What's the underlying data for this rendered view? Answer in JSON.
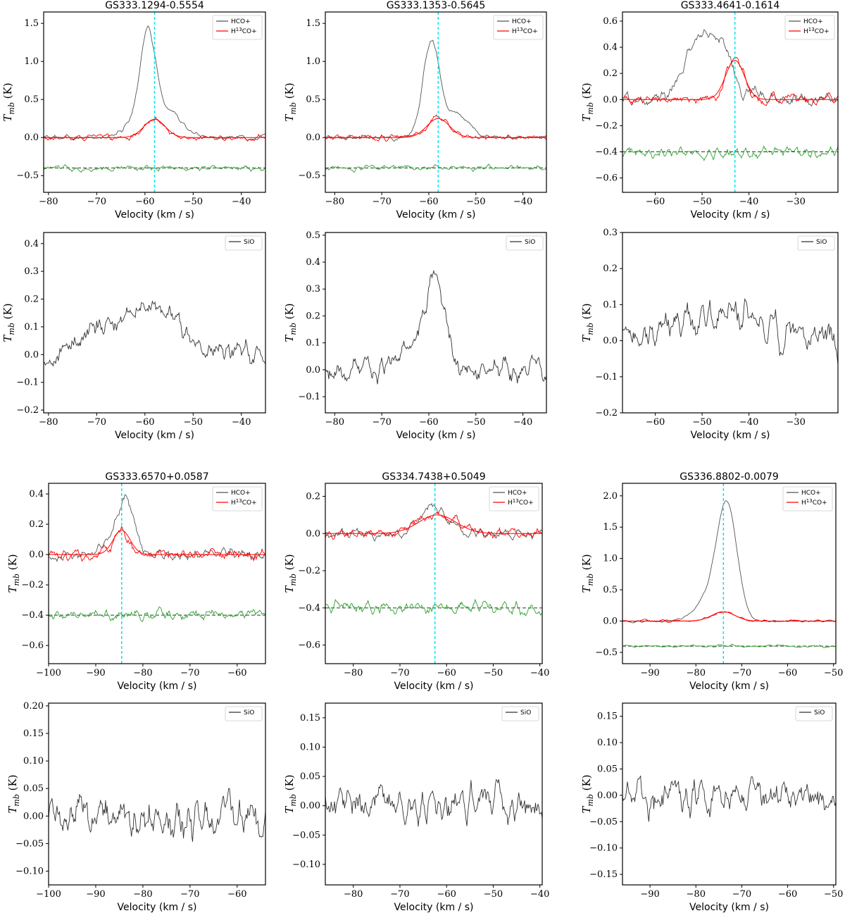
{
  "chart_data": [
    {
      "type": "line",
      "title": "GS333.1294-0.5554",
      "xlabel": "Velocity (km / s)",
      "ylabel": "T_mb (K)",
      "xlim": [
        -81,
        -35
      ],
      "ylim": [
        -0.72,
        1.65
      ],
      "xticks": [
        -80,
        -70,
        -60,
        -50,
        -40
      ],
      "yticks": [
        -0.5,
        0,
        0.5,
        1.0,
        1.5
      ],
      "ytick_labels": [
        "−0.5",
        "0.0",
        "0.5",
        "1.0",
        "1.5"
      ],
      "vline": -58,
      "baseline": -0.4,
      "legend": [
        "HCO+",
        "H13CO+"
      ],
      "noise": 0.05,
      "series": [
        {
          "name": "HCO+",
          "color": "#555555",
          "peaks": [
            {
              "v": -59.4,
              "a": 1.35,
              "w": 1.6
            },
            {
              "v": -55,
              "a": 0.35,
              "w": 2.5
            },
            {
              "v": -63,
              "a": 0.15,
              "w": 2
            }
          ]
        },
        {
          "name": "H13CO+",
          "color": "#ff0000",
          "peaks": [
            {
              "v": -58,
              "a": 0.24,
              "w": 2.2
            }
          ],
          "fit": true
        },
        {
          "name": "residual",
          "color": "#2ca02c",
          "offset": -0.4
        }
      ]
    },
    {
      "type": "line",
      "title": "",
      "xlabel": "Velocity (km / s)",
      "ylabel": "T_mb (K)",
      "xlim": [
        -81,
        -35
      ],
      "ylim": [
        -0.21,
        0.44
      ],
      "xticks": [
        -80,
        -70,
        -60,
        -50,
        -40
      ],
      "yticks": [
        -0.2,
        -0.1,
        0,
        0.1,
        0.2,
        0.3,
        0.4
      ],
      "ytick_labels": [
        "−0.2",
        "−0.1",
        "0.0",
        "0.1",
        "0.2",
        "0.3",
        "0.4"
      ],
      "legend": [
        "SiO"
      ],
      "noise": 0.06,
      "series": [
        {
          "name": "SiO",
          "color": "#333333",
          "peaks": [
            {
              "v": -60,
              "a": 0.18,
              "w": 6
            },
            {
              "v": -72,
              "a": 0.05,
              "w": 3
            }
          ]
        }
      ]
    },
    {
      "type": "line",
      "title": "GS333.1353-0.5645",
      "xlabel": "Velocity (km / s)",
      "ylabel": "T_mb (K)",
      "xlim": [
        -82,
        -35
      ],
      "ylim": [
        -0.72,
        1.65
      ],
      "xticks": [
        -80,
        -70,
        -60,
        -50,
        -40
      ],
      "yticks": [
        -0.5,
        0,
        0.5,
        1.0,
        1.5
      ],
      "ytick_labels": [
        "−0.5",
        "0.0",
        "0.5",
        "1.0",
        "1.5"
      ],
      "vline": -58,
      "baseline": -0.4,
      "legend": [
        "HCO+",
        "H13CO+"
      ],
      "noise": 0.05,
      "series": [
        {
          "name": "HCO+",
          "color": "#555555",
          "peaks": [
            {
              "v": -59.5,
              "a": 1.25,
              "w": 1.8
            },
            {
              "v": -54,
              "a": 0.3,
              "w": 2.5
            }
          ]
        },
        {
          "name": "H13CO+",
          "color": "#ff0000",
          "peaks": [
            {
              "v": -58,
              "a": 0.25,
              "w": 2.4
            }
          ],
          "fit": true
        },
        {
          "name": "residual",
          "color": "#2ca02c",
          "offset": -0.4
        }
      ]
    },
    {
      "type": "line",
      "title": "",
      "xlabel": "Velocity (km / s)",
      "ylabel": "T_mb (K)",
      "xlim": [
        -82,
        -35
      ],
      "ylim": [
        -0.16,
        0.51
      ],
      "xticks": [
        -80,
        -70,
        -60,
        -50,
        -40
      ],
      "yticks": [
        -0.1,
        0,
        0.1,
        0.2,
        0.3,
        0.4,
        0.5
      ],
      "ytick_labels": [
        "−0.1",
        "0.0",
        "0.1",
        "0.2",
        "0.3",
        "0.4",
        "0.5"
      ],
      "legend": [
        "SiO"
      ],
      "noise": 0.06,
      "series": [
        {
          "name": "SiO",
          "color": "#333333",
          "peaks": [
            {
              "v": -58.5,
              "a": 0.3,
              "w": 2
            },
            {
              "v": -62,
              "a": 0.08,
              "w": 4
            }
          ]
        }
      ]
    },
    {
      "type": "line",
      "title": "GS333.4641-0.1614",
      "xlabel": "Velocity (km / s)",
      "ylabel": "T_mb (K)",
      "xlim": [
        -67,
        -21
      ],
      "ylim": [
        -0.71,
        0.67
      ],
      "xticks": [
        -60,
        -50,
        -40,
        -30
      ],
      "yticks": [
        -0.6,
        -0.4,
        -0.2,
        0,
        0.2,
        0.4,
        0.6
      ],
      "ytick_labels": [
        "−0.6",
        "−0.4",
        "−0.2",
        "0.0",
        "0.2",
        "0.4",
        "0.6"
      ],
      "vline": -43,
      "baseline": -0.4,
      "legend": [
        "HCO+",
        "H13CO+"
      ],
      "noise": 0.06,
      "series": [
        {
          "name": "HCO+",
          "color": "#555555",
          "peaks": [
            {
              "v": -47,
              "a": 0.45,
              "w": 4
            },
            {
              "v": -52,
              "a": 0.2,
              "w": 3
            },
            {
              "v": -42,
              "a": -0.15,
              "w": 1
            }
          ]
        },
        {
          "name": "H13CO+",
          "color": "#ff0000",
          "peaks": [
            {
              "v": -43,
              "a": 0.3,
              "w": 2
            }
          ],
          "fit": true
        },
        {
          "name": "residual",
          "color": "#2ca02c",
          "offset": -0.4
        }
      ]
    },
    {
      "type": "line",
      "title": "",
      "xlabel": "Velocity (km / s)",
      "ylabel": "T_mb (K)",
      "xlim": [
        -67,
        -21
      ],
      "ylim": [
        -0.2,
        0.3
      ],
      "xticks": [
        -60,
        -50,
        -40,
        -30
      ],
      "yticks": [
        -0.2,
        -0.1,
        0,
        0.1,
        0.2,
        0.3
      ],
      "ytick_labels": [
        "−0.2",
        "−0.1",
        "0.0",
        "0.1",
        "0.2",
        "0.3"
      ],
      "legend": [
        "SiO"
      ],
      "noise": 0.07,
      "series": [
        {
          "name": "SiO",
          "color": "#333333",
          "peaks": [
            {
              "v": -45,
              "a": 0.08,
              "w": 8
            }
          ]
        }
      ]
    },
    {
      "type": "line",
      "title": "GS333.6570+0.0587",
      "xlabel": "Velocity (km / s)",
      "ylabel": "T_mb (K)",
      "xlim": [
        -100,
        -54
      ],
      "ylim": [
        -0.72,
        0.47
      ],
      "xticks": [
        -100,
        -90,
        -80,
        -70,
        -60
      ],
      "yticks": [
        -0.6,
        -0.4,
        -0.2,
        0,
        0.2,
        0.4
      ],
      "ytick_labels": [
        "−0.6",
        "−0.4",
        "−0.2",
        "0.0",
        "0.2",
        "0.4"
      ],
      "vline": -84.5,
      "baseline": -0.4,
      "legend": [
        "HCO+",
        "H13CO+"
      ],
      "noise": 0.05,
      "series": [
        {
          "name": "HCO+",
          "color": "#555555",
          "peaks": [
            {
              "v": -83.5,
              "a": 0.33,
              "w": 1.6
            },
            {
              "v": -86,
              "a": 0.12,
              "w": 2
            }
          ]
        },
        {
          "name": "H13CO+",
          "color": "#ff0000",
          "peaks": [
            {
              "v": -84.5,
              "a": 0.16,
              "w": 1.8
            }
          ],
          "fit": true
        },
        {
          "name": "residual",
          "color": "#2ca02c",
          "offset": -0.4
        }
      ]
    },
    {
      "type": "line",
      "title": "",
      "xlabel": "Velocity (km / s)",
      "ylabel": "T_mb (K)",
      "xlim": [
        -100,
        -54
      ],
      "ylim": [
        -0.125,
        0.205
      ],
      "xticks": [
        -100,
        -90,
        -80,
        -70,
        -60
      ],
      "yticks": [
        -0.1,
        -0.05,
        0,
        0.05,
        0.1,
        0.15,
        0.2
      ],
      "ytick_labels": [
        "−0.10",
        "−0.05",
        "0.00",
        "0.05",
        "0.10",
        "0.15",
        "0.20"
      ],
      "legend": [
        "SiO"
      ],
      "noise": 0.05,
      "series": [
        {
          "name": "SiO",
          "color": "#333333",
          "peaks": []
        }
      ]
    },
    {
      "type": "line",
      "title": "GS334.7438+0.5049",
      "xlabel": "Velocity (km / s)",
      "ylabel": "T_mb (K)",
      "xlim": [
        -86,
        -39.5
      ],
      "ylim": [
        -0.7,
        0.27
      ],
      "xticks": [
        -80,
        -70,
        -60,
        -50,
        -40
      ],
      "yticks": [
        -0.6,
        -0.4,
        -0.2,
        0,
        0.2
      ],
      "ytick_labels": [
        "−0.6",
        "−0.4",
        "−0.2",
        "0.0",
        "0.2"
      ],
      "vline": -62.5,
      "baseline": -0.4,
      "legend": [
        "HCO+",
        "H13CO+"
      ],
      "noise": 0.04,
      "series": [
        {
          "name": "HCO+",
          "color": "#555555",
          "peaks": [
            {
              "v": -63,
              "a": 0.15,
              "w": 2.5
            }
          ]
        },
        {
          "name": "H13CO+",
          "color": "#ff0000",
          "peaks": [
            {
              "v": -62,
              "a": 0.1,
              "w": 4
            }
          ],
          "fit": true
        },
        {
          "name": "residual",
          "color": "#2ca02c",
          "offset": -0.4
        }
      ]
    },
    {
      "type": "line",
      "title": "",
      "xlabel": "Velocity (km / s)",
      "ylabel": "T_mb (K)",
      "xlim": [
        -86,
        -39.5
      ],
      "ylim": [
        -0.135,
        0.175
      ],
      "xticks": [
        -80,
        -70,
        -60,
        -50,
        -40
      ],
      "yticks": [
        -0.1,
        -0.05,
        0,
        0.05,
        0.1,
        0.15
      ],
      "ytick_labels": [
        "−0.10",
        "−0.05",
        "0.00",
        "0.05",
        "0.10",
        "0.15"
      ],
      "legend": [
        "SiO"
      ],
      "noise": 0.045,
      "series": [
        {
          "name": "SiO",
          "color": "#333333",
          "peaks": []
        }
      ]
    },
    {
      "type": "line",
      "title": "GS336.8802-0.0079",
      "xlabel": "Velocity (km / s)",
      "ylabel": "T_mb (K)",
      "xlim": [
        -96,
        -49.5
      ],
      "ylim": [
        -0.68,
        2.2
      ],
      "xticks": [
        -90,
        -80,
        -70,
        -60,
        -50
      ],
      "yticks": [
        -0.5,
        0,
        0.5,
        1.0,
        1.5,
        2.0
      ],
      "ytick_labels": [
        "−0.5",
        "0.0",
        "0.5",
        "1.0",
        "1.5",
        "2.0"
      ],
      "vline": -74,
      "baseline": -0.4,
      "legend": [
        "HCO+",
        "H13CO+"
      ],
      "noise": 0.03,
      "series": [
        {
          "name": "HCO+",
          "color": "#555555",
          "peaks": [
            {
              "v": -73.2,
              "a": 1.75,
              "w": 2.2
            },
            {
              "v": -77,
              "a": 0.35,
              "w": 3
            }
          ]
        },
        {
          "name": "H13CO+",
          "color": "#ff0000",
          "peaks": [
            {
              "v": -74,
              "a": 0.15,
              "w": 2.5
            }
          ],
          "fit": true
        },
        {
          "name": "residual",
          "color": "#2ca02c",
          "offset": -0.4
        }
      ]
    },
    {
      "type": "line",
      "title": "",
      "xlabel": "Velocity (km / s)",
      "ylabel": "T_mb (K)",
      "xlim": [
        -96,
        -49.5
      ],
      "ylim": [
        -0.17,
        0.175
      ],
      "xticks": [
        -90,
        -80,
        -70,
        -60,
        -50
      ],
      "yticks": [
        -0.15,
        -0.1,
        -0.05,
        0,
        0.05,
        0.1,
        0.15
      ],
      "ytick_labels": [
        "−0.15",
        "−0.10",
        "−0.05",
        "0.00",
        "0.05",
        "0.10",
        "0.15"
      ],
      "legend": [
        "SiO"
      ],
      "noise": 0.05,
      "series": [
        {
          "name": "SiO",
          "color": "#333333",
          "peaks": []
        }
      ]
    }
  ]
}
